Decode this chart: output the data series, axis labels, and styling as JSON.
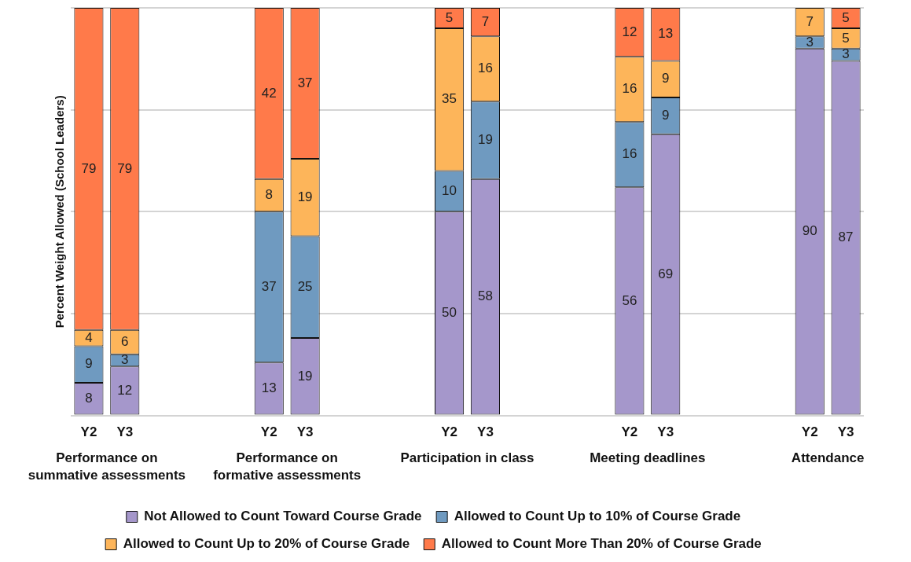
{
  "chart_data": {
    "type": "bar",
    "stacked": true,
    "ylabel": "Percent Weight Allowed (School Leaders)",
    "categories": [
      "Y2",
      "Y3",
      null,
      null,
      null,
      "Y2",
      "Y3",
      null,
      null,
      null,
      "Y2",
      "Y3",
      null,
      null,
      null,
      "Y2",
      "Y3",
      null,
      null,
      null,
      "Y2",
      "Y3"
    ],
    "series": [
      {
        "name": "Not Allowed to Count Toward Course Grade",
        "color": "#a597cb",
        "values": [
          8,
          12,
          null,
          null,
          null,
          13,
          19,
          null,
          null,
          null,
          50,
          58,
          null,
          null,
          null,
          56,
          69,
          null,
          null,
          null,
          90,
          87
        ]
      },
      {
        "name": "Allowed to Count Up to 10% of Course Grade",
        "color": "#6f9ac0",
        "values": [
          9,
          3,
          null,
          null,
          null,
          37,
          25,
          null,
          null,
          null,
          10,
          19,
          null,
          null,
          null,
          16,
          9,
          null,
          null,
          null,
          3,
          3
        ]
      },
      {
        "name": "Allowed to Count Up to 20% of Course Grade",
        "color": "#fdb55a",
        "values": [
          4,
          6,
          null,
          null,
          null,
          8,
          19,
          null,
          null,
          null,
          35,
          16,
          null,
          null,
          null,
          16,
          9,
          null,
          null,
          null,
          7,
          5
        ]
      },
      {
        "name": "Allowed to Count More Than 20% of Course Grade",
        "color": "#ff7a4a",
        "values": [
          79,
          79,
          null,
          null,
          null,
          42,
          37,
          null,
          null,
          null,
          5,
          7,
          null,
          null,
          null,
          12,
          13,
          null,
          null,
          null,
          null,
          5
        ]
      }
    ],
    "ylim": [
      0,
      100
    ],
    "yticks": [
      {
        "value": 0,
        "label": null
      },
      {
        "value": 25,
        "label": null
      },
      {
        "value": 50,
        "label": null
      },
      {
        "value": 75,
        "label": null
      },
      {
        "value": 100,
        "label": null
      }
    ],
    "tick_labels": "x",
    "grid": "y",
    "legend": "bottom",
    "data_labels": true,
    "annotations": [
      "Performance on summative assessments",
      "Performance on formative assessments",
      "Participation in class",
      "Meeting deadlines",
      "Attendance"
    ]
  }
}
